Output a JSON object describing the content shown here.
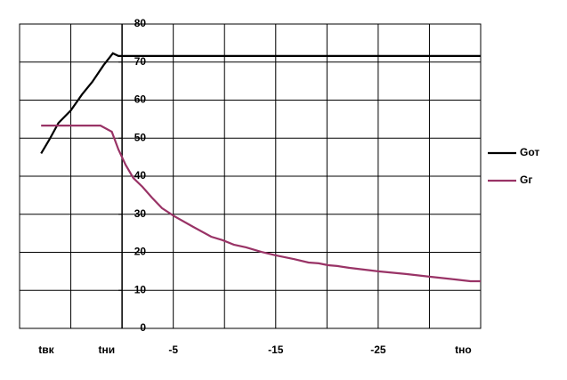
{
  "chart_data": {
    "type": "line",
    "xlim": [
      10,
      -35
    ],
    "xticks": [
      {
        "value": 7.4,
        "label": "tвк"
      },
      {
        "value": 1.5,
        "label": "tни"
      },
      -5,
      -15,
      -25,
      {
        "value": -33.3,
        "label": "tно"
      }
    ],
    "x_gridlines": [
      10,
      5,
      0,
      -5,
      -10,
      -15,
      -20,
      -25,
      -30,
      -35
    ],
    "ylim": [
      0,
      80
    ],
    "yticks": [
      0,
      10,
      20,
      30,
      40,
      50,
      60,
      70,
      80
    ],
    "grid": true,
    "legend": "right",
    "series": [
      {
        "name": "Gот",
        "color": "#000000",
        "x": [
          7.9,
          7.1,
          6.2,
          5,
          3.9,
          2.9,
          1.8,
          0.9,
          0.35,
          -35
        ],
        "values": [
          46,
          49.6,
          54,
          57.3,
          61.5,
          64.8,
          69.2,
          72.3,
          71.6,
          71.6
        ]
      },
      {
        "name": "Gг",
        "color": "#993366",
        "x": [
          7.9,
          2.1,
          1,
          0.35,
          -0.35,
          -1.1,
          -2,
          -2.9,
          -3.9,
          -5.1,
          -6.8,
          -8.7,
          -9.8,
          -10.9,
          -12.1,
          -13.6,
          -15,
          -16.8,
          -18.2,
          -19.2,
          -20.1,
          -21,
          -22.2,
          -25,
          -27.7,
          -30,
          -32.4,
          -34,
          -35
        ],
        "values": [
          53.3,
          53.3,
          51.7,
          47,
          43,
          39.5,
          37.2,
          34.4,
          31.6,
          29.5,
          26.9,
          24.1,
          23.2,
          22,
          21.3,
          20.1,
          19.2,
          18.2,
          17.3,
          17.1,
          16.6,
          16.4,
          15.9,
          15,
          14.3,
          13.6,
          12.9,
          12.4,
          12.4
        ]
      }
    ]
  }
}
